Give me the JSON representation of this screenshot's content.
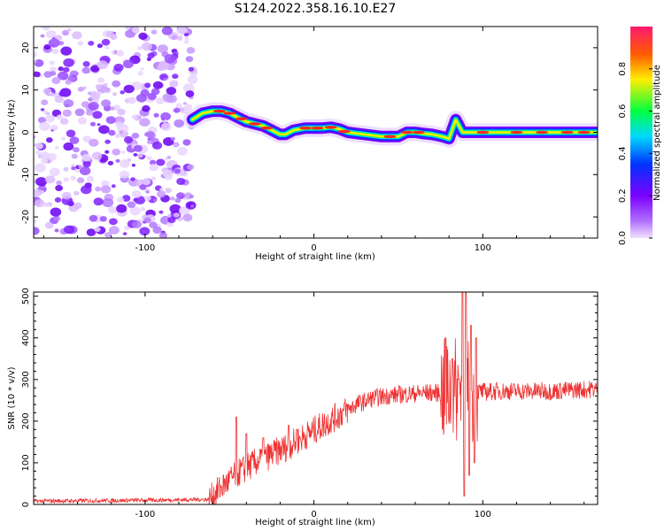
{
  "title": "S124.2022.358.16.10.E27",
  "chart_data": [
    {
      "type": "heatmap",
      "xlabel": "Height of straight line (km)",
      "ylabel": "Frequency (Hz)",
      "xlim": [
        -166,
        168
      ],
      "ylim": [
        -25,
        25
      ],
      "x_ticks": [
        -100,
        0,
        100
      ],
      "y_ticks": [
        -20,
        -10,
        0,
        10,
        20
      ],
      "colorbar": {
        "label": "Normalized spectral amplitude",
        "range": [
          0,
          1
        ],
        "ticks": [
          0.0,
          0.2,
          0.4,
          0.6,
          0.8
        ],
        "colormap": [
          "#f2e2ff",
          "#7a00ff",
          "#0033ff",
          "#00d9ff",
          "#00ff40",
          "#ffee00",
          "#ff5a00",
          "#ff1a70"
        ]
      },
      "noise_region_x": [
        -166,
        -71
      ],
      "ridge": [
        [
          -72,
          3
        ],
        [
          -66,
          4.5
        ],
        [
          -60,
          5
        ],
        [
          -55,
          5
        ],
        [
          -50,
          4.5
        ],
        [
          -45,
          3.5
        ],
        [
          -40,
          2.5
        ],
        [
          -35,
          2
        ],
        [
          -30,
          1.5
        ],
        [
          -25,
          0.5
        ],
        [
          -20,
          -0.5
        ],
        [
          -17,
          -0.5
        ],
        [
          -12,
          0.5
        ],
        [
          -5,
          1
        ],
        [
          0,
          1
        ],
        [
          5,
          1
        ],
        [
          10,
          1.2
        ],
        [
          15,
          0.8
        ],
        [
          20,
          0
        ],
        [
          30,
          -0.5
        ],
        [
          40,
          -1
        ],
        [
          50,
          -1
        ],
        [
          55,
          0
        ],
        [
          60,
          0
        ],
        [
          65,
          -0.3
        ],
        [
          70,
          -0.5
        ],
        [
          76,
          -1
        ],
        [
          80,
          -1.5
        ],
        [
          84,
          3
        ],
        [
          88,
          0
        ],
        [
          95,
          0
        ],
        [
          110,
          0
        ],
        [
          130,
          0
        ],
        [
          150,
          0
        ],
        [
          167,
          0
        ]
      ]
    },
    {
      "type": "line",
      "xlabel": "Height of straight line (km)",
      "ylabel": "SNR (10 * v/v)",
      "xlim": [
        -166,
        168
      ],
      "ylim": [
        0,
        510
      ],
      "x_ticks": [
        -100,
        0,
        100
      ],
      "y_ticks": [
        0,
        100,
        200,
        300,
        400,
        500
      ],
      "color": "#ee3333",
      "trend": [
        [
          -166,
          8
        ],
        [
          -100,
          10
        ],
        [
          -62,
          12
        ],
        [
          -55,
          40
        ],
        [
          -45,
          75
        ],
        [
          -35,
          100
        ],
        [
          -25,
          120
        ],
        [
          -15,
          140
        ],
        [
          -5,
          165
        ],
        [
          5,
          190
        ],
        [
          15,
          215
        ],
        [
          25,
          240
        ],
        [
          35,
          255
        ],
        [
          45,
          262
        ],
        [
          55,
          265
        ],
        [
          65,
          268
        ],
        [
          75,
          268
        ],
        [
          80,
          270
        ],
        [
          90,
          275
        ],
        [
          100,
          270
        ],
        [
          110,
          272
        ],
        [
          120,
          272
        ],
        [
          130,
          272
        ],
        [
          140,
          272
        ],
        [
          150,
          274
        ],
        [
          160,
          276
        ],
        [
          168,
          278
        ]
      ],
      "spikes": [
        [
          -46,
          210
        ],
        [
          -40,
          170
        ],
        [
          -30,
          160
        ],
        [
          -15,
          190
        ],
        [
          -10,
          180
        ],
        [
          78,
          400
        ],
        [
          82,
          350
        ],
        [
          86,
          300
        ],
        [
          88,
          510
        ],
        [
          90,
          510
        ],
        [
          93,
          430
        ],
        [
          96,
          400
        ],
        [
          89,
          20
        ],
        [
          92,
          70
        ],
        [
          95,
          100
        ]
      ]
    }
  ]
}
